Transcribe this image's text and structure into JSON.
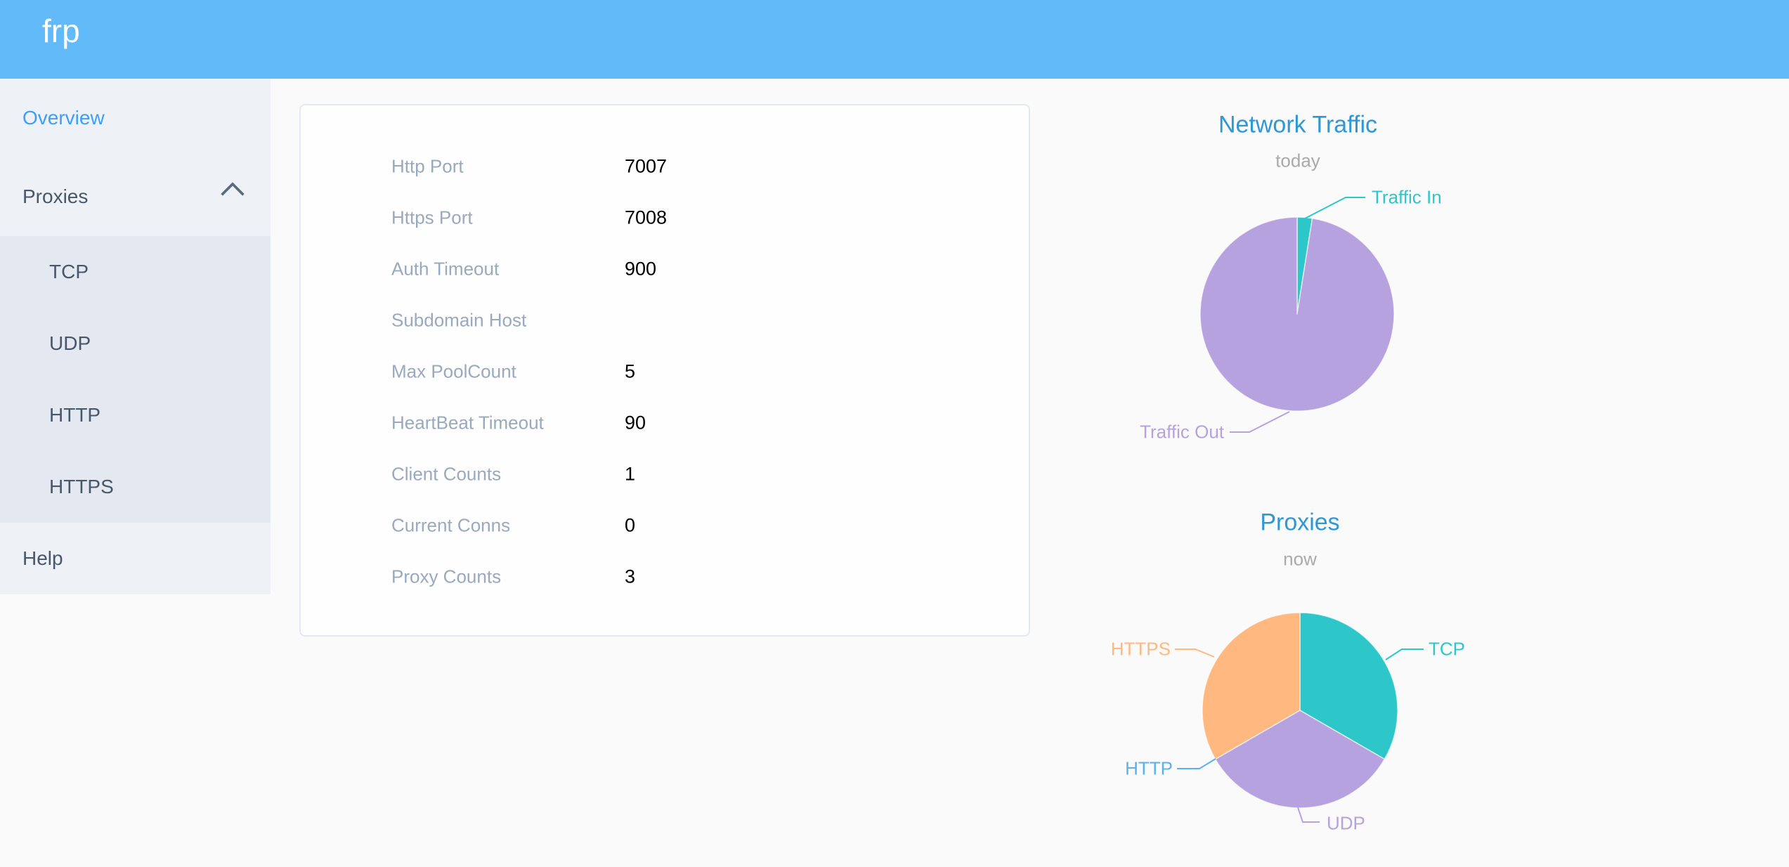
{
  "app": {
    "logo": "frp",
    "header_color": "#62baf9",
    "active_menu_color": "#3d9ff7"
  },
  "sidebar": {
    "items": [
      {
        "label": "Overview",
        "state": "active"
      },
      {
        "label": "Proxies",
        "state": "expanded",
        "icon": "chevron-up"
      },
      {
        "label": "TCP",
        "level": 2
      },
      {
        "label": "UDP",
        "level": 2
      },
      {
        "label": "HTTP",
        "level": 2
      },
      {
        "label": "HTTPS",
        "level": 2
      },
      {
        "label": "Help"
      }
    ]
  },
  "overview_card": {
    "rows": [
      {
        "label": "Http Port",
        "value": "7007"
      },
      {
        "label": "Https Port",
        "value": "7008"
      },
      {
        "label": "Auth Timeout",
        "value": "900"
      },
      {
        "label": "Subdomain Host",
        "value": ""
      },
      {
        "label": "Max PoolCount",
        "value": "5"
      },
      {
        "label": "HeartBeat Timeout",
        "value": "90"
      },
      {
        "label": "Client Counts",
        "value": "1"
      },
      {
        "label": "Current Conns",
        "value": "0"
      },
      {
        "label": "Proxy Counts",
        "value": "3"
      }
    ]
  },
  "chart_data": [
    {
      "type": "pie",
      "title": "Network Traffic",
      "subtitle": "today",
      "values_estimated": true,
      "unit": "percent",
      "series": [
        {
          "name": "Traffic In",
          "value": 2.5,
          "color": "#2ec7c9"
        },
        {
          "name": "Traffic Out",
          "value": 97.5,
          "color": "#b6a2de"
        }
      ]
    },
    {
      "type": "pie",
      "title": "Proxies",
      "subtitle": "now",
      "unit": "proxy count",
      "series": [
        {
          "name": "TCP",
          "value": 1,
          "color": "#2ec7c9"
        },
        {
          "name": "UDP",
          "value": 1,
          "color": "#b6a2de"
        },
        {
          "name": "HTTP",
          "value": 0,
          "color": "#5ab1ef"
        },
        {
          "name": "HTTPS",
          "value": 1,
          "color": "#ffb980"
        }
      ]
    }
  ],
  "theme": {
    "chart_title_color": "#2e98d5",
    "chart_subtitle_color": "#aaaaaa"
  }
}
